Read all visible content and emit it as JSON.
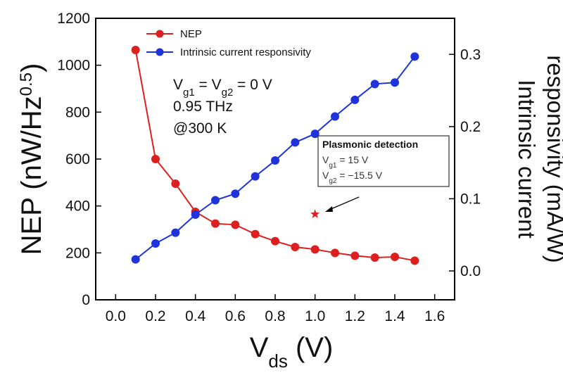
{
  "chart_data": {
    "type": "line",
    "xlabel": {
      "main": "V",
      "sub": "ds",
      "rest": " (V)"
    },
    "ylabel_left": {
      "a": "NEP (nW/Hz",
      "sup": "0.5",
      "b": ")"
    },
    "ylabel_right": {
      "line1": "Intrinsic current",
      "line2": "responsivity (mA/W)"
    },
    "xlim": [
      -0.1,
      1.7
    ],
    "ylim_left": [
      0,
      1200
    ],
    "ylim_right": [
      -0.04,
      0.35
    ],
    "xticks": [
      "0.0",
      "0.2",
      "0.4",
      "0.6",
      "0.8",
      "1.0",
      "1.2",
      "1.4",
      "1.6"
    ],
    "yticks_left": [
      "0",
      "200",
      "400",
      "600",
      "800",
      "1000",
      "1200"
    ],
    "yticks_right": [
      "0.0",
      "0.1",
      "0.2",
      "0.3"
    ],
    "x": [
      0.1,
      0.2,
      0.3,
      0.4,
      0.5,
      0.6,
      0.7,
      0.8,
      0.9,
      1.0,
      1.1,
      1.2,
      1.3,
      1.4,
      1.5
    ],
    "series": [
      {
        "name": "NEP",
        "axis": "left",
        "color": "#dd1f1f",
        "values": [
          1065,
          600,
          495,
          375,
          325,
          320,
          280,
          250,
          225,
          215,
          200,
          188,
          180,
          183,
          167
        ]
      },
      {
        "name": "Intrinsic current responsivity",
        "axis": "right",
        "color": "#1f33dd",
        "values": [
          0.016,
          0.038,
          0.053,
          0.078,
          0.098,
          0.107,
          0.131,
          0.153,
          0.178,
          0.19,
          0.214,
          0.237,
          0.259,
          0.261,
          0.297
        ]
      }
    ],
    "annotation": {
      "lines": [
        {
          "main": "V",
          "sub": "g1",
          "mid": " = V",
          "sub2": "g2",
          "rest": " = 0 V"
        },
        {
          "text": "0.95 THz"
        },
        {
          "text": "@300 K"
        }
      ]
    },
    "special_point": {
      "x": 1.0,
      "y": 365,
      "marker": "star",
      "color": "#dd1f1f"
    },
    "callout": {
      "title": "Plasmonic detection",
      "line1": {
        "main": "V",
        "sub": "g1",
        "rest": " = 15 V"
      },
      "line2": {
        "main": "V",
        "sub": "g2",
        "rest": " = −15.5 V"
      }
    },
    "legend_position": "top-left",
    "grid": false
  }
}
